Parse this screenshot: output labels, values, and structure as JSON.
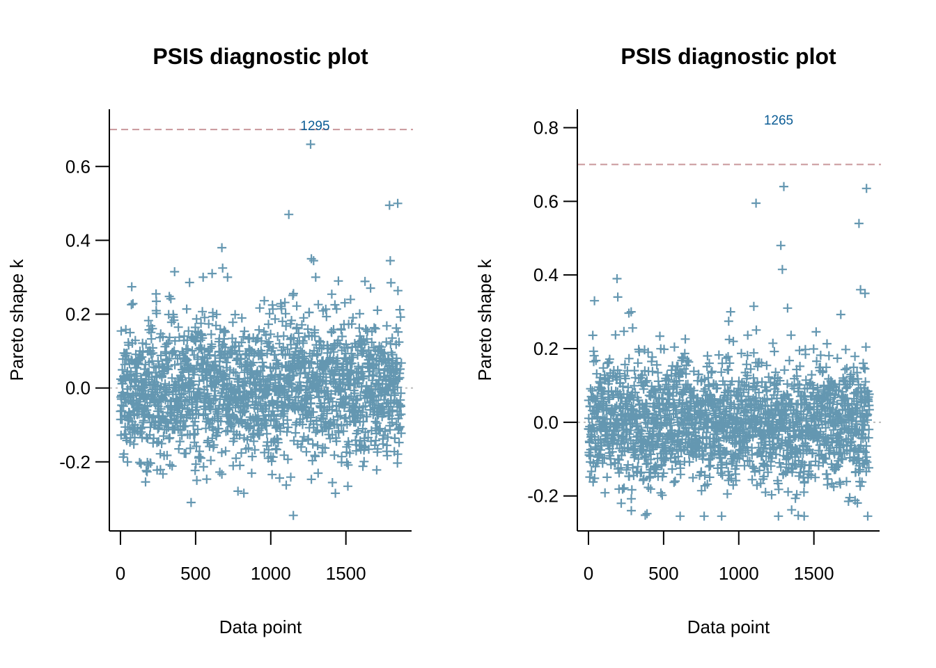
{
  "colors": {
    "points": "#6497b1",
    "threshold_line": "#c9979b",
    "zero_line": "#bbbbbb",
    "annotation": "#0b5c95",
    "axis": "#000000"
  },
  "chart_data": [
    {
      "type": "scatter",
      "title": "PSIS diagnostic plot",
      "xlabel": "Data point",
      "ylabel": "Pareto shape k",
      "xlim": [
        -74,
        1937
      ],
      "ylim": [
        -0.387,
        0.755
      ],
      "x_ticks": [
        0,
        500,
        1000,
        1500
      ],
      "x_tick_labels": [
        "0",
        "500",
        "1000",
        "1500"
      ],
      "y_ticks": [
        -0.2,
        0.0,
        0.2,
        0.4,
        0.6
      ],
      "y_tick_labels": [
        "-0.2",
        "0.0",
        "0.2",
        "0.4",
        "0.6"
      ],
      "n_points": 1870,
      "threshold": 0.7,
      "zero_line": 0.0,
      "marker": "+",
      "grid": false,
      "annotation": {
        "label": "1295",
        "x": 1295,
        "y": 0.7
      },
      "notable_points": [
        {
          "x": 1265,
          "y": 0.66
        },
        {
          "x": 1120,
          "y": 0.47
        },
        {
          "x": 1790,
          "y": 0.495
        },
        {
          "x": 1845,
          "y": 0.5
        },
        {
          "x": 1795,
          "y": 0.345
        },
        {
          "x": 1800,
          "y": 0.285
        },
        {
          "x": 1270,
          "y": 0.35
        },
        {
          "x": 1285,
          "y": 0.345
        },
        {
          "x": 675,
          "y": 0.38
        },
        {
          "x": 680,
          "y": 0.325
        },
        {
          "x": 360,
          "y": 0.315
        },
        {
          "x": 610,
          "y": 0.31
        },
        {
          "x": 1150,
          "y": -0.345
        },
        {
          "x": 470,
          "y": -0.31
        },
        {
          "x": 1430,
          "y": -0.285
        }
      ],
      "bulk_distribution": {
        "center": 0.0,
        "typical_range": [
          -0.25,
          0.25
        ]
      }
    },
    {
      "type": "scatter",
      "title": "PSIS diagnostic plot",
      "xlabel": "Data point",
      "ylabel": "Pareto shape k",
      "xlim": [
        -74,
        1937
      ],
      "ylim": [
        -0.295,
        0.85
      ],
      "x_ticks": [
        0,
        500,
        1000,
        1500
      ],
      "x_tick_labels": [
        "0",
        "500",
        "1000",
        "1500"
      ],
      "y_ticks": [
        -0.2,
        0.0,
        0.2,
        0.4,
        0.6,
        0.8
      ],
      "y_tick_labels": [
        "-0.2",
        "0.0",
        "0.2",
        "0.4",
        "0.6",
        "0.8"
      ],
      "n_points": 1870,
      "threshold": 0.7,
      "zero_line": 0.0,
      "marker": "+",
      "grid": false,
      "annotation": {
        "label": "1265",
        "x": 1265,
        "y": 0.81
      },
      "notable_points": [
        {
          "x": 1300,
          "y": 0.64
        },
        {
          "x": 1115,
          "y": 0.595
        },
        {
          "x": 1850,
          "y": 0.635
        },
        {
          "x": 1800,
          "y": 0.54
        },
        {
          "x": 1280,
          "y": 0.48
        },
        {
          "x": 1290,
          "y": 0.415
        },
        {
          "x": 1810,
          "y": 0.36
        },
        {
          "x": 1840,
          "y": 0.35
        },
        {
          "x": 1100,
          "y": 0.315
        },
        {
          "x": 1325,
          "y": 0.31
        },
        {
          "x": 190,
          "y": 0.39
        },
        {
          "x": 195,
          "y": 0.34
        },
        {
          "x": 40,
          "y": 0.33
        },
        {
          "x": 1435,
          "y": -0.255
        },
        {
          "x": 610,
          "y": -0.255
        },
        {
          "x": 285,
          "y": -0.24
        }
      ],
      "bulk_distribution": {
        "center": 0.0,
        "typical_range": [
          -0.22,
          0.22
        ]
      }
    }
  ]
}
